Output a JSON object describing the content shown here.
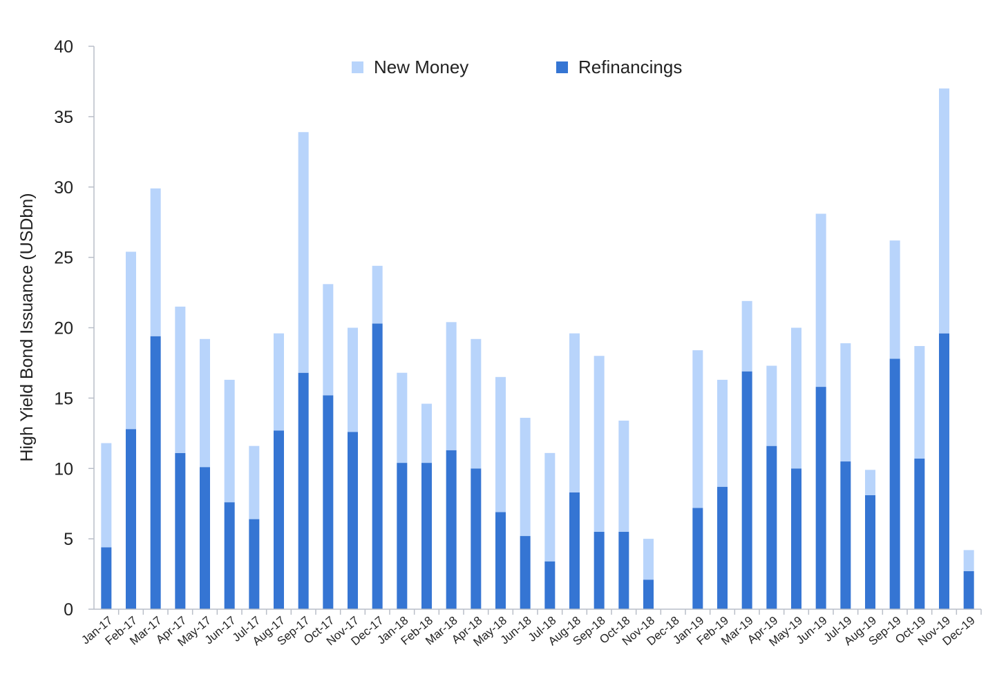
{
  "chart_data": {
    "type": "bar",
    "stacked": true,
    "title": "",
    "xlabel": "",
    "ylabel": "High Yield Bond Issuance (USDbn)",
    "ylim": [
      0,
      40
    ],
    "yticks": [
      0,
      5,
      10,
      15,
      20,
      25,
      30,
      35,
      40
    ],
    "grid": false,
    "legend_position": "top-center",
    "categories": [
      "Jan-17",
      "Feb-17",
      "Mar-17",
      "Apr-17",
      "May-17",
      "Jun-17",
      "Jul-17",
      "Aug-17",
      "Sep-17",
      "Oct-17",
      "Nov-17",
      "Dec-17",
      "Jan-18",
      "Feb-18",
      "Mar-18",
      "Apr-18",
      "May-18",
      "Jun-18",
      "Jul-18",
      "Aug-18",
      "Sep-18",
      "Oct-18",
      "Nov-18",
      "Dec-18",
      "Jan-19",
      "Feb-19",
      "Mar-19",
      "Apr-19",
      "May-19",
      "Jun-19",
      "Jul-19",
      "Aug-19",
      "Sep-19",
      "Oct-19",
      "Nov-19",
      "Dec-19"
    ],
    "series": [
      {
        "name": "Refinancings",
        "color": "#3575d3",
        "values": [
          4.4,
          12.8,
          19.4,
          11.1,
          10.1,
          7.6,
          6.4,
          12.7,
          16.8,
          15.2,
          12.6,
          20.3,
          10.4,
          10.4,
          11.3,
          10.0,
          6.9,
          5.2,
          3.4,
          8.3,
          5.5,
          5.5,
          2.1,
          0,
          7.2,
          8.7,
          16.9,
          11.6,
          10.0,
          15.8,
          10.5,
          8.1,
          17.8,
          10.7,
          19.6,
          2.7
        ]
      },
      {
        "name": "New Money",
        "color": "#b8d4fb",
        "values": [
          7.4,
          12.6,
          10.5,
          10.4,
          9.1,
          8.7,
          5.2,
          6.9,
          17.1,
          7.9,
          7.4,
          4.1,
          6.4,
          4.2,
          9.1,
          9.2,
          9.6,
          8.4,
          7.7,
          11.3,
          12.5,
          7.9,
          2.9,
          0,
          11.2,
          7.6,
          5.0,
          5.7,
          10.0,
          12.3,
          8.4,
          1.8,
          8.4,
          8.0,
          17.4,
          1.5
        ]
      }
    ]
  }
}
